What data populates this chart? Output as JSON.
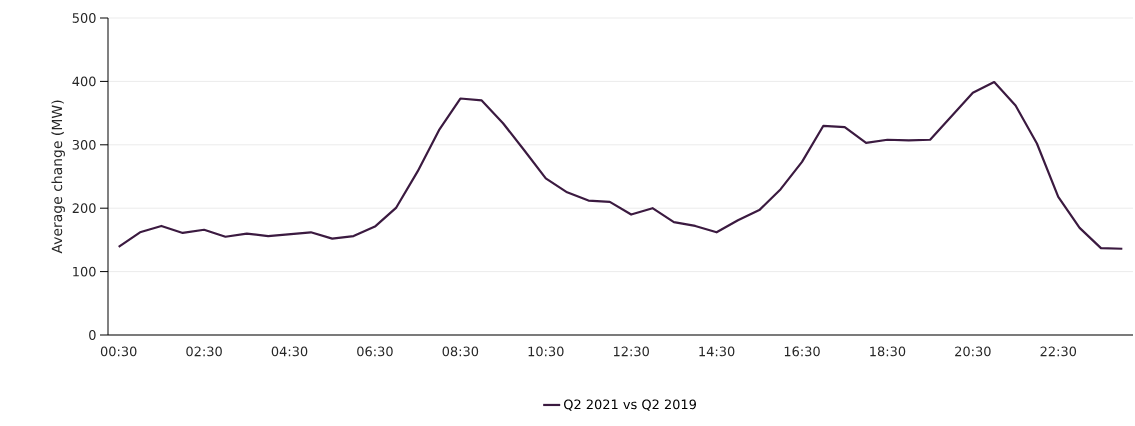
{
  "chart_data": {
    "type": "line",
    "ylabel": "Average change (MW)",
    "categories": [
      "00:30",
      null,
      null,
      null,
      "02:30",
      null,
      null,
      null,
      "04:30",
      null,
      null,
      null,
      "06:30",
      null,
      null,
      null,
      "08:30",
      null,
      null,
      null,
      "10:30",
      null,
      null,
      null,
      "12:30",
      null,
      null,
      null,
      "14:30",
      null,
      null,
      null,
      "16:30",
      null,
      null,
      null,
      "18:30",
      null,
      null,
      null,
      "20:30",
      null,
      null,
      null,
      "22:30",
      null,
      null,
      null
    ],
    "series": [
      {
        "name": "Q2 2021 vs Q2 2019",
        "color": "#3b1a40",
        "values": [
          139,
          162,
          172,
          161,
          166,
          155,
          160,
          156,
          159,
          162,
          152,
          156,
          171,
          201,
          258,
          323,
          373,
          370,
          334,
          291,
          247,
          225,
          212,
          210,
          190,
          200,
          178,
          172,
          162,
          181,
          197,
          230,
          273,
          330,
          328,
          303,
          308,
          307,
          308,
          345,
          382,
          399,
          362,
          302,
          218,
          169,
          137,
          136
        ]
      }
    ],
    "ylim": [
      0,
      500
    ],
    "yticks": [
      0,
      100,
      200,
      300,
      400,
      500
    ],
    "grid": "y",
    "legend": "bottom"
  }
}
